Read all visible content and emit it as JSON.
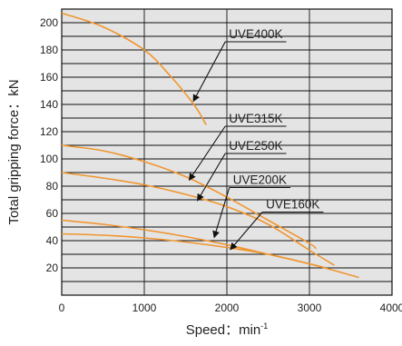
{
  "chart_data": {
    "type": "line",
    "title": "",
    "xlabel": "Speed：min",
    "xlabel_superscript": "-1",
    "ylabel": "Total gripping force：kN",
    "xlim": [
      0,
      4000
    ],
    "ylim": [
      0,
      210
    ],
    "x_ticks": [
      "0",
      "1000",
      "2000",
      "3000",
      "4000"
    ],
    "y_ticks": [
      "20",
      "40",
      "60",
      "80",
      "100",
      "120",
      "140",
      "160",
      "180",
      "200"
    ],
    "grid": {
      "horizontal_step": 10,
      "vertical_step": 1000
    },
    "plot_background": "#e4e4e4",
    "line_color": "#f0952f",
    "series": [
      {
        "name": "UVE400K",
        "x": [
          0,
          500,
          1000,
          1300,
          1600,
          1750
        ],
        "y": [
          207,
          197,
          180,
          162,
          140,
          125
        ],
        "callout": {
          "text_x": 2350,
          "text_y": 186,
          "target_x": 1600,
          "target_y": 143
        }
      },
      {
        "name": "UVE315K",
        "x": [
          0,
          500,
          1000,
          1500,
          2000,
          2500,
          3000,
          3080
        ],
        "y": [
          110,
          106,
          98,
          87,
          72,
          55,
          38,
          34
        ],
        "callout": {
          "text_x": 2350,
          "text_y": 124,
          "target_x": 1550,
          "target_y": 85
        }
      },
      {
        "name": "UVE250K",
        "x": [
          0,
          500,
          1000,
          1500,
          2000,
          2500,
          3000,
          3300
        ],
        "y": [
          90,
          86,
          81,
          74,
          65,
          52,
          33,
          22
        ],
        "callout": {
          "text_x": 2350,
          "text_y": 104,
          "target_x": 1650,
          "target_y": 70
        }
      },
      {
        "name": "UVE200K",
        "x": [
          0,
          500,
          1000,
          1500,
          2000,
          2500,
          3000,
          3600
        ],
        "y": [
          55,
          52,
          48,
          43,
          37,
          30,
          23,
          13
        ],
        "callout": {
          "text_x": 2400,
          "text_y": 79,
          "target_x": 1850,
          "target_y": 43
        }
      },
      {
        "name": "UVE160K",
        "x": [
          0,
          500,
          1000,
          1500,
          2000,
          2500,
          3000,
          3200
        ],
        "y": [
          45,
          44,
          42,
          39,
          35,
          30,
          23,
          20
        ],
        "callout": {
          "text_x": 2800,
          "text_y": 61,
          "target_x": 2050,
          "target_y": 34
        }
      }
    ]
  }
}
